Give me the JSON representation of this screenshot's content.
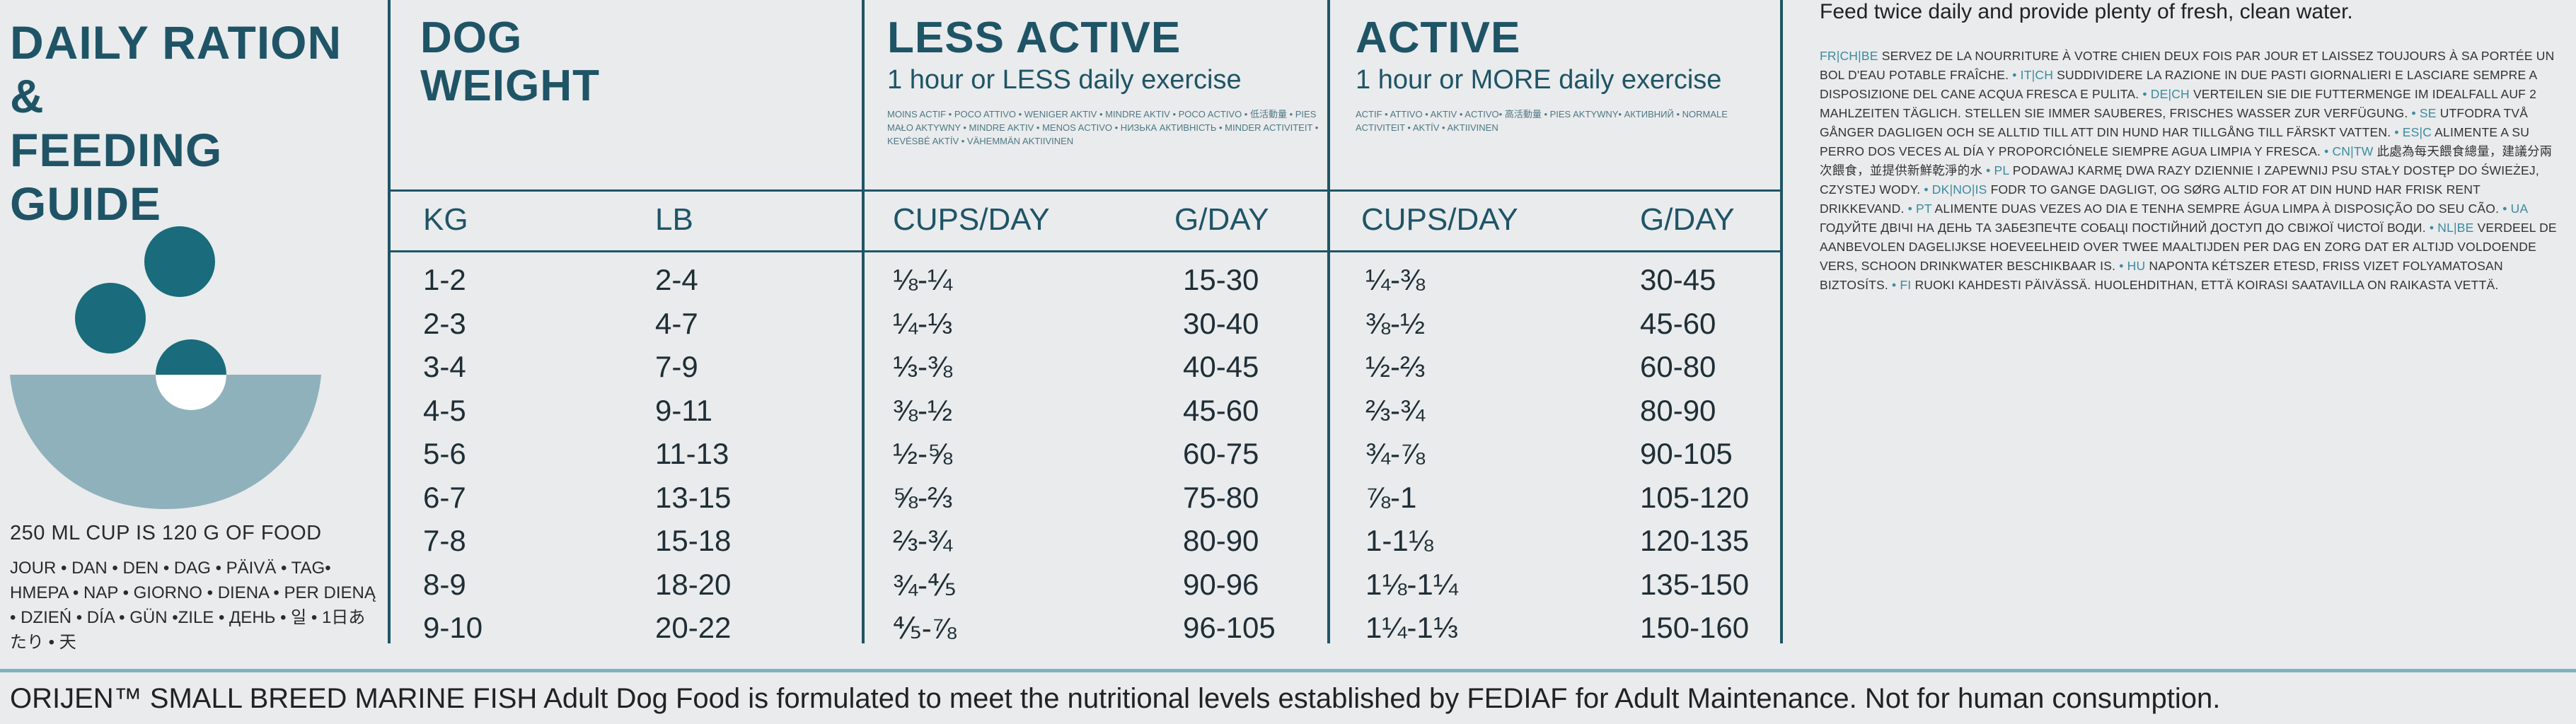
{
  "left": {
    "title_line1": "DAILY RATION &",
    "title_line2": "FEEDING GUIDE",
    "cup_note": "250 ML CUP IS 120 G OF FOOD",
    "day_words": "JOUR • DAN • DEN • DAG • PÄIVÄ • TAG• HMEPA • NAP • GIORNO • DIENA • PER DIENĄ • DZIEŃ • DÍA • GÜN •ZILE • ДЕНЬ • 일 • 1日あたり • 天"
  },
  "dog_weight": {
    "heading_line1": "DOG",
    "heading_line2": "WEIGHT",
    "unit_kg": "KG",
    "unit_lb": "LB",
    "kg": [
      "1-2",
      "2-3",
      "3-4",
      "4-5",
      "5-6",
      "6-7",
      "7-8",
      "8-9",
      "9-10"
    ],
    "lb": [
      "2-4",
      "4-7",
      "7-9",
      "9-11",
      "11-13",
      "13-15",
      "15-18",
      "18-20",
      "20-22"
    ]
  },
  "less_active": {
    "heading": "LESS ACTIVE",
    "subheading": "1 hour or LESS daily exercise",
    "translations": "MOINS ACTIF • POCO ATTIVO • WENIGER AKTIV • MINDRE AKTIV • POCO ACTIVO • 低活動量 • PIES MAŁO AKTYWNY • MINDRE AKTIV • MENOS ACTIVO • НИЗЬКА АКТИВНІСТЬ • MINDER ACTIVITEIT • KEVÉSBÉ AKTÍV • VÄHEMMÄN AKTIIVINEN",
    "unit_cups": "CUPS/DAY",
    "unit_g": "G/DAY",
    "cups": [
      "⅛-¼",
      "¼-⅓",
      "⅓-⅜",
      "⅜-½",
      "½-⅝",
      "⅝-⅔",
      "⅔-¾",
      "¾-⅘",
      "⅘-⅞"
    ],
    "grams": [
      "15-30",
      "30-40",
      "40-45",
      "45-60",
      "60-75",
      "75-80",
      "80-90",
      "90-96",
      "96-105"
    ]
  },
  "active": {
    "heading": "ACTIVE",
    "subheading": "1 hour or MORE daily exercise",
    "translations": "ACTIF • ATTIVO • AKTIV • ACTIVO• 高活動量 • PIES AKTYWNY• АКТИВНИЙ • NORMALE ACTIVITEIT • AKTÍV • AKTIIVINEN",
    "unit_cups": "CUPS/DAY",
    "unit_g": "G/DAY",
    "cups": [
      "¼-⅜",
      "⅜-½",
      "½-⅔",
      "⅔-¾",
      "¾-⅞",
      "⅞-1",
      "1-1⅛",
      "1⅛-1¼",
      "1¼-1⅓"
    ],
    "grams": [
      "30-45",
      "45-60",
      "60-80",
      "80-90",
      "90-105",
      "105-120",
      "120-135",
      "135-150",
      "150-160"
    ]
  },
  "right": {
    "feed_note": "Feed twice daily and provide plenty of fresh, clean water.",
    "multilingual": [
      {
        "code": "FR|CH|BE",
        "text": "SERVEZ DE LA NOURRITURE À VOTRE CHIEN DEUX FOIS PAR JOUR ET LAISSEZ TOUJOURS À SA PORTÉE UN BOL D'EAU POTABLE FRAÎCHE."
      },
      {
        "code": "IT|CH",
        "text": "SUDDIVIDERE LA RAZIONE IN DUE PASTI GIORNALIERI E LASCIARE SEMPRE A DISPOSIZIONE DEL CANE ACQUA FRESCA E PULITA."
      },
      {
        "code": "DE|CH",
        "text": "VERTEILEN SIE DIE FUTTERMENGE IM IDEALFALL AUF 2 MAHLZEITEN TÄGLICH. STELLEN SIE IMMER SAUBERES, FRISCHES WASSER ZUR VERFÜGUNG."
      },
      {
        "code": "SE",
        "text": "UTFODRA TVÅ GÅNGER DAGLIGEN OCH SE ALLTID TILL ATT DIN HUND HAR TILLGÅNG TILL FÄRSKT VATTEN."
      },
      {
        "code": "ES|C",
        "text": "ALIMENTE A SU PERRO DOS VECES AL DÍA Y PROPORCIÓNELE SIEMPRE AGUA LIMPIA Y FRESCA."
      },
      {
        "code": "CN|TW",
        "text": "此處為每天餵食總量，建議分兩次餵食，並提供新鮮乾淨的水"
      },
      {
        "code": "PL",
        "text": "PODAWAJ KARMĘ DWA RAZY DZIENNIE I ZAPEWNIJ PSU STAŁY DOSTĘP DO ŚWIEŻEJ, CZYSTEJ WODY."
      },
      {
        "code": "DK|NO|IS",
        "text": "FODR TO GANGE DAGLIGT, OG SØRG ALTID FOR AT DIN HUND HAR FRISK RENT DRIKKEVAND."
      },
      {
        "code": "PT",
        "text": "ALIMENTE DUAS VEZES AO DIA E TENHA SEMPRE ÁGUA LIMPA À DISPOSIÇÃO DO SEU CÃO."
      },
      {
        "code": "UA",
        "text": "ГОДУЙТЕ ДВІЧІ НА ДЕНЬ ТА ЗАБЕЗПЕЧТЕ СОБАЦІ ПОСТІЙНИЙ ДОСТУП ДО СВІЖОЇ ЧИСТОЇ ВОДИ."
      },
      {
        "code": "NL|BE",
        "text": "VERDEEL DE AANBEVOLEN DAGELIJKSE HOEVEELHEID OVER TWEE MAALTIJDEN PER DAG EN ZORG DAT ER ALTIJD VOLDOENDE VERS, SCHOON DRINKWATER BESCHIKBAAR IS."
      },
      {
        "code": "HU",
        "text": "NAPONTA KÉTSZER ETESD, FRISS VIZET FOLYAMATOSAN BIZTOSÍTS."
      },
      {
        "code": "FI",
        "text": "RUOKI KAHDESTI PÄIVÄSSÄ. HUOLEHDITHAN, ETTÄ KOIRASI SAATAVILLA ON RAIKASTA VETTÄ."
      }
    ]
  },
  "footer": {
    "text": "ORIJEN™ SMALL BREED MARINE FISH Adult Dog Food is formulated to meet the nutritional levels established by FEDIAF for Adult Maintenance. Not for human consumption."
  }
}
